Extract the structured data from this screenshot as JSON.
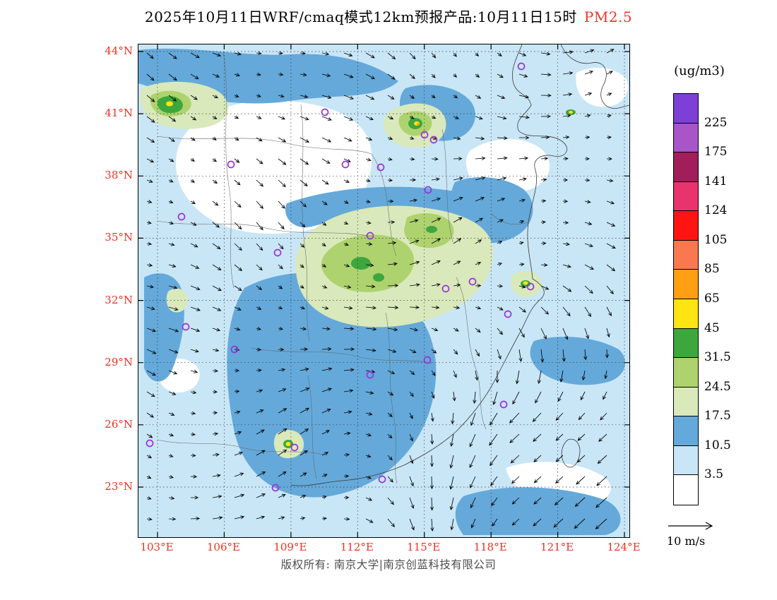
{
  "title": {
    "main": "2025年10月11日WRF/cmaq模式12km预报产品:10月11日15时",
    "pollutant": "PM2.5",
    "pollutant_color": "#f0342a"
  },
  "axes": {
    "lat_labels": [
      "44°N",
      "41°N",
      "38°N",
      "35°N",
      "32°N",
      "29°N",
      "26°N",
      "23°N"
    ],
    "lon_labels": [
      "103°E",
      "106°E",
      "109°E",
      "112°E",
      "115°E",
      "118°E",
      "121°E",
      "124°E"
    ],
    "label_color": "#ee3124"
  },
  "colorbar": {
    "unit": "(ug/m3)",
    "labels_top_to_bottom": [
      "225",
      "175",
      "141",
      "124",
      "105",
      "85",
      "65",
      "45",
      "31.5",
      "24.5",
      "17.5",
      "10.5",
      "3.5"
    ],
    "colors_top_to_bottom": [
      "#7d3fd6",
      "#a855c8",
      "#a01e5a",
      "#e8336e",
      "#ff1414",
      "#fa7850",
      "#ffa014",
      "#ffe414",
      "#3da73e",
      "#aed36e",
      "#d9e9bc",
      "#64a9da",
      "#c9e6f7",
      "#ffffff"
    ]
  },
  "wind_legend": {
    "label": "10 m/s"
  },
  "footer": {
    "text": "版权所有: 南京大学|南京创蓝科技有限公司"
  },
  "map": {
    "city_markers_svg_xy": [
      [
        542,
        31
      ],
      [
        264,
        96
      ],
      [
        405,
        128
      ],
      [
        418,
        135
      ],
      [
        131,
        170
      ],
      [
        293,
        170
      ],
      [
        343,
        174
      ],
      [
        410,
        206
      ],
      [
        61,
        244
      ],
      [
        328,
        271
      ],
      [
        197,
        295
      ],
      [
        435,
        346
      ],
      [
        473,
        336
      ],
      [
        555,
        343
      ],
      [
        523,
        382
      ],
      [
        67,
        400
      ],
      [
        136,
        432
      ],
      [
        409,
        447
      ],
      [
        328,
        468
      ],
      [
        517,
        510
      ],
      [
        16,
        565
      ],
      [
        221,
        571
      ],
      [
        194,
        628
      ],
      [
        345,
        616
      ]
    ],
    "marker_color": "#9b30d9"
  },
  "chart_data": {
    "type": "heatmap",
    "title": "2025年10月11日WRF/cmaq模式12km预报产品:10月11日15时 PM2.5",
    "variable": "PM2.5",
    "unit": "ug/m3",
    "model": "WRF/cmaq 12km",
    "x": {
      "label": "longitude",
      "ticks": [
        "103°E",
        "106°E",
        "109°E",
        "112°E",
        "115°E",
        "118°E",
        "121°E",
        "124°E"
      ],
      "range_deg": [
        103,
        124
      ]
    },
    "y": {
      "label": "latitude",
      "ticks": [
        "23°N",
        "26°N",
        "29°N",
        "32°N",
        "35°N",
        "38°N",
        "41°N",
        "44°N"
      ],
      "range_deg": [
        23,
        44
      ]
    },
    "colorbar_levels_low_to_high": [
      3.5,
      10.5,
      17.5,
      24.5,
      31.5,
      45,
      65,
      85,
      105,
      124,
      141,
      175,
      225
    ],
    "colorbar_colors_low_to_high": [
      "#ffffff",
      "#c9e6f7",
      "#64a9da",
      "#d9e9bc",
      "#aed36e",
      "#3da73e",
      "#ffe414",
      "#ffa014",
      "#fa7850",
      "#ff1414",
      "#e8336e",
      "#a01e5a",
      "#a855c8",
      "#7d3fd6"
    ],
    "wind_reference_m_s": 10,
    "overlays": [
      "wind vector field",
      "city marker circles",
      "province and coastline boundaries",
      "dotted lat-lon grid"
    ],
    "value_summary": [
      {
        "region": "central China plain (~30-36N, 108-119E)",
        "pm25": "17.5-45 with local spots 45-65"
      },
      {
        "region": "northern band (~41-44N) and southern inland (~23-31N, 106-115E)",
        "pm25": "10.5-17.5"
      },
      {
        "region": "remaining land and coastal seas",
        "pm25": "0-10.5"
      }
    ]
  }
}
